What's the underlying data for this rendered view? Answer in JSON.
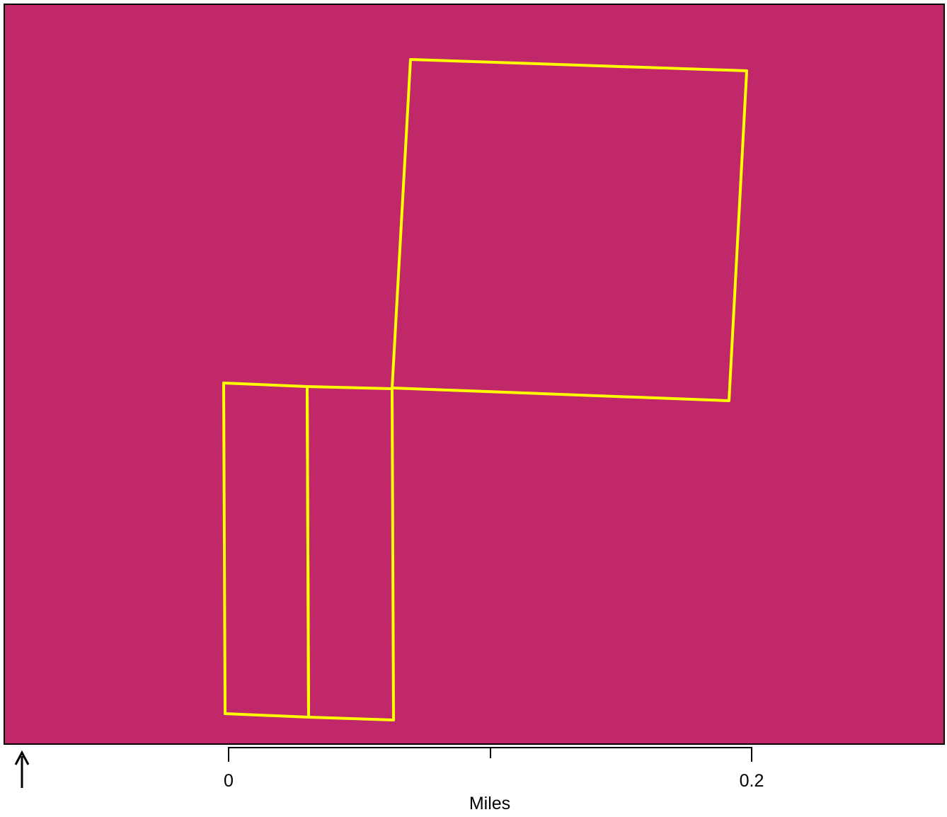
{
  "map": {
    "background_color": "#c0286a",
    "parcel_outline_color": "#ffff00",
    "parcels": [
      {
        "name": "parcel-large-north"
      },
      {
        "name": "parcel-south-west-strip"
      },
      {
        "name": "parcel-south-east-strip"
      }
    ]
  },
  "north_arrow": {
    "icon": "north-arrow-icon"
  },
  "scale_bar": {
    "tick_labels": [
      "0",
      "0.2"
    ],
    "tick_values": [
      0,
      0.1,
      0.2
    ],
    "unit_label": "Miles"
  }
}
